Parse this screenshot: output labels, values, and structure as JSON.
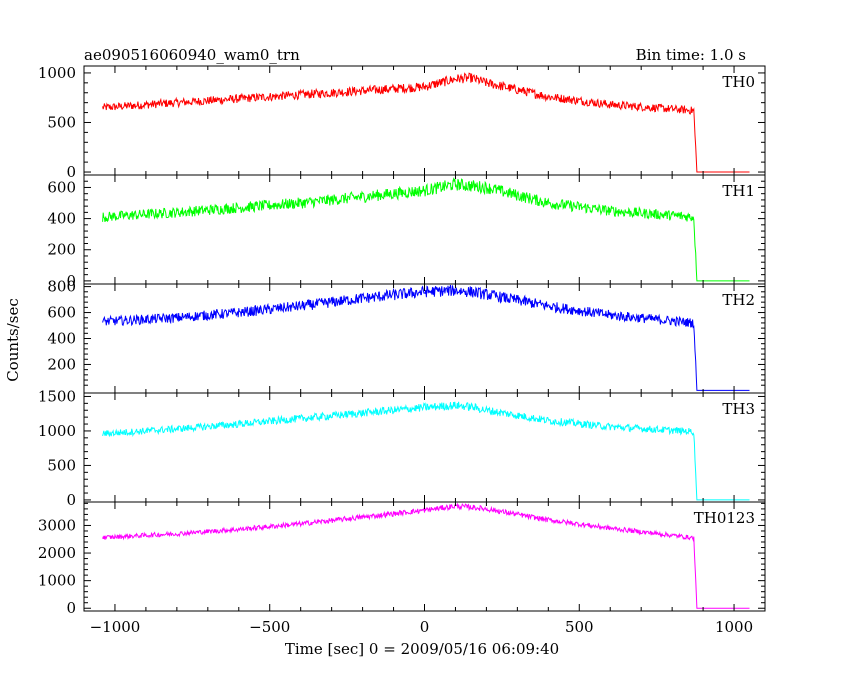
{
  "chart_data": {
    "type": "line",
    "title": "ae090516060940_wam0_trn",
    "subtitle": "Bin time: 1.0 s",
    "xlabel": "Time [sec] 0 = 2009/05/16 06:09:40",
    "ylabel": "Counts/sec",
    "xlim": [
      -1100,
      1100
    ],
    "x_ticks": [
      -1000,
      -500,
      0,
      500,
      1000
    ],
    "grid": false,
    "panels": [
      {
        "name": "TH0",
        "color": "#ff0000",
        "ylim": [
          -30,
          1070
        ],
        "y_ticks": [
          0,
          500,
          1000
        ],
        "x": [
          -1040,
          -800,
          -600,
          -400,
          -200,
          0,
          100,
          150,
          200,
          400,
          600,
          870,
          880,
          890,
          1050
        ],
        "values": [
          650,
          700,
          740,
          780,
          820,
          860,
          940,
          950,
          900,
          760,
          680,
          620,
          0,
          0,
          0
        ]
      },
      {
        "name": "TH1",
        "color": "#00ff00",
        "ylim": [
          -20,
          680
        ],
        "y_ticks": [
          0,
          200,
          400,
          600
        ],
        "x": [
          -1040,
          -800,
          -600,
          -400,
          -200,
          0,
          100,
          150,
          200,
          400,
          600,
          870,
          880,
          890,
          1050
        ],
        "values": [
          410,
          440,
          470,
          500,
          540,
          580,
          620,
          610,
          600,
          500,
          450,
          410,
          0,
          0,
          0
        ]
      },
      {
        "name": "TH2",
        "color": "#0000ff",
        "ylim": [
          -20,
          820
        ],
        "y_ticks": [
          200,
          400,
          600,
          800
        ],
        "x": [
          -1040,
          -800,
          -600,
          -400,
          -200,
          0,
          100,
          150,
          200,
          400,
          600,
          870,
          880,
          890,
          1050
        ],
        "values": [
          530,
          560,
          600,
          650,
          710,
          760,
          770,
          760,
          740,
          650,
          580,
          520,
          0,
          0,
          0
        ]
      },
      {
        "name": "TH3",
        "color": "#00ffff",
        "ylim": [
          -30,
          1550
        ],
        "y_ticks": [
          0,
          500,
          1000,
          1500
        ],
        "x": [
          -1040,
          -800,
          -600,
          -400,
          -200,
          0,
          100,
          150,
          200,
          400,
          600,
          870,
          880,
          890,
          1050
        ],
        "values": [
          960,
          1030,
          1100,
          1180,
          1260,
          1340,
          1370,
          1350,
          1300,
          1150,
          1060,
          990,
          0,
          0,
          0
        ]
      },
      {
        "name": "TH0123",
        "color": "#ff00ff",
        "ylim": [
          -100,
          3850
        ],
        "y_ticks": [
          0,
          1000,
          2000,
          3000
        ],
        "x": [
          -1040,
          -800,
          -600,
          -400,
          -200,
          0,
          100,
          150,
          200,
          400,
          600,
          870,
          880,
          890,
          1050
        ],
        "values": [
          2560,
          2700,
          2860,
          3060,
          3300,
          3550,
          3700,
          3660,
          3600,
          3200,
          2900,
          2550,
          0,
          0,
          0
        ]
      }
    ]
  }
}
